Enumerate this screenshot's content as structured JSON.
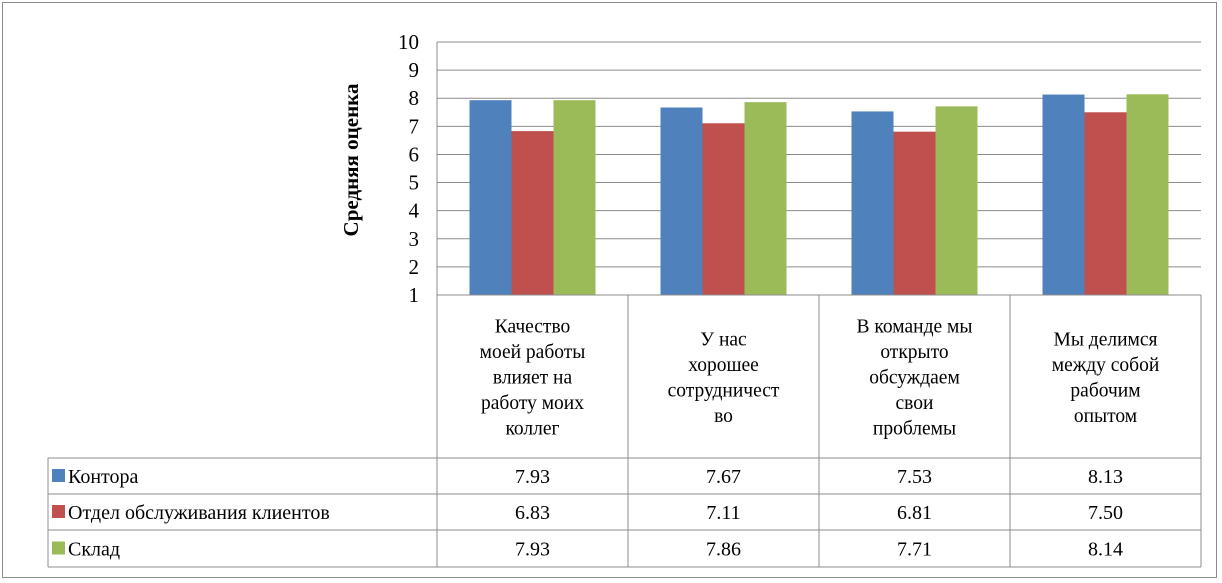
{
  "chart_data": {
    "type": "bar",
    "ylabel": "Средняя оценка",
    "ylim": [
      1,
      10
    ],
    "yticks": [
      "1",
      "2",
      "3",
      "4",
      "5",
      "6",
      "7",
      "8",
      "9",
      "10"
    ],
    "grid": true,
    "data_table": true,
    "categories": [
      [
        "Качество",
        "моей работы",
        "влияет на",
        "работу моих",
        "коллег"
      ],
      [
        "У нас",
        "хорошее",
        "сотрудничест",
        "во"
      ],
      [
        "В команде мы",
        "открыто",
        "обсуждаем",
        "свои",
        "проблемы"
      ],
      [
        "Мы делимся",
        "между собой",
        "рабочим",
        "опытом"
      ]
    ],
    "series": [
      {
        "name": "Контора",
        "color": "#4f81bd",
        "values": [
          7.93,
          7.67,
          7.53,
          8.13
        ],
        "labels": [
          "7.93",
          "7.67",
          "7.53",
          "8.13"
        ]
      },
      {
        "name": "Отдел обслуживания клиентов",
        "color": "#c0504d",
        "values": [
          6.83,
          7.11,
          6.81,
          7.5
        ],
        "labels": [
          "6.83",
          "7.11",
          "6.81",
          "7.50"
        ]
      },
      {
        "name": "Склад",
        "color": "#9bbb59",
        "values": [
          7.93,
          7.86,
          7.71,
          8.14
        ],
        "labels": [
          "7.93",
          "7.86",
          "7.71",
          "8.14"
        ]
      }
    ]
  }
}
